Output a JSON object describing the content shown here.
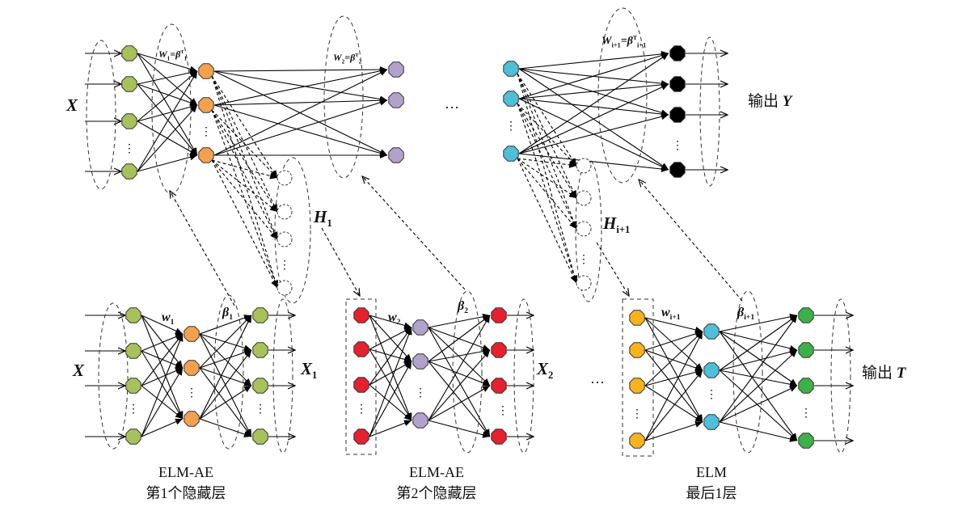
{
  "colors": {
    "green_in": "#a9c15a",
    "orange": "#f4a14f",
    "purple": "#b1a2cc",
    "cyan": "#4fbfd8",
    "black": "#000000",
    "red": "#e5202f",
    "yellow": "#f7b21e",
    "green_out": "#3cb14a"
  },
  "top": {
    "input_label": "X",
    "w1_label": {
      "base": "W",
      "sub": "1",
      "eq": "=β",
      "sup": "T",
      "sub2": "1"
    },
    "w2_label": {
      "base": "W",
      "sub": "2",
      "eq": "=β",
      "sup": "T",
      "sub2": "2"
    },
    "wi_label": {
      "base": "W",
      "sub": "i+1",
      "eq": "=β",
      "sup": "T",
      "sub2": "i+1"
    },
    "ellipsis": "…",
    "h1_label": {
      "base": "H",
      "sub": "1"
    },
    "hi_label": {
      "base": "H",
      "sub": "i+1"
    },
    "output_label": {
      "text": "输出",
      "var": "Y"
    }
  },
  "bottom": {
    "ae1": {
      "input": "X",
      "w": {
        "base": "w",
        "sub": "1"
      },
      "beta": {
        "base": "β",
        "sub": "1"
      },
      "output": {
        "base": "X",
        "sub": "1"
      },
      "caption1": "ELM-AE",
      "caption2": "第1个隐藏层"
    },
    "ae2": {
      "w": {
        "base": "w",
        "sub": "2"
      },
      "beta": {
        "base": "β",
        "sub": "2"
      },
      "output": {
        "base": "X",
        "sub": "2"
      },
      "caption1": "ELM-AE",
      "caption2": "第2个隐藏层"
    },
    "ellipsis": "…",
    "elm": {
      "w": {
        "base": "w",
        "sub": "i+1"
      },
      "beta": {
        "base": "β",
        "sub": "i+1"
      },
      "output": {
        "text": "输出",
        "var": "T"
      },
      "caption1": "ELM",
      "caption2": "最后1层"
    }
  }
}
